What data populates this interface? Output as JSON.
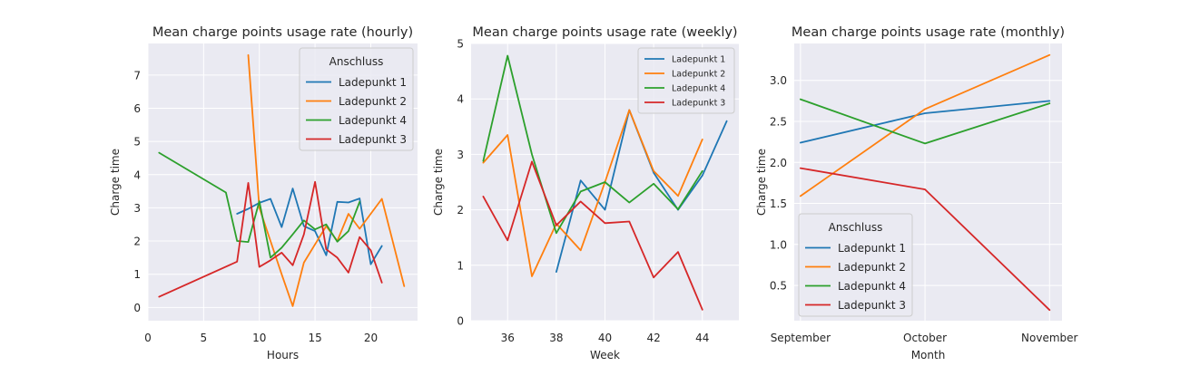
{
  "chart_data": [
    {
      "type": "line",
      "title": "Mean charge points usage rate (hourly)",
      "xlabel": "Hours",
      "ylabel": "Charge time",
      "xlim": [
        0,
        24.2
      ],
      "ylim": [
        -0.4,
        7.95
      ],
      "xticks": [
        0,
        5,
        10,
        15,
        20
      ],
      "yticks": [
        0,
        1,
        2,
        3,
        4,
        5,
        6,
        7
      ],
      "grid": true,
      "legend": {
        "title": "Anschluss",
        "placement": "top-right",
        "size": "large"
      },
      "series": [
        {
          "name": "Ladepunkt 1",
          "color": "#1f77b4",
          "x": [
            8,
            9,
            10,
            11,
            12,
            13,
            14,
            15,
            16,
            17,
            18,
            19,
            20,
            21
          ],
          "y": [
            2.82,
            2.97,
            3.15,
            3.27,
            2.42,
            3.58,
            2.45,
            2.3,
            1.57,
            3.18,
            3.16,
            3.28,
            1.3,
            1.85
          ]
        },
        {
          "name": "Ladepunkt 2",
          "color": "#ff7f0e",
          "x": [
            9,
            10,
            11,
            12,
            13,
            14,
            15,
            16,
            17,
            18,
            19,
            21,
            23
          ],
          "y": [
            7.6,
            3.0,
            2.0,
            1.0,
            0.04,
            1.35,
            1.9,
            2.45,
            2.0,
            2.82,
            2.37,
            3.27,
            0.64
          ]
        },
        {
          "name": "Ladepunkt 4",
          "color": "#2ca02c",
          "x": [
            1,
            7,
            8,
            9,
            10,
            11,
            12,
            13,
            14,
            15,
            16,
            17,
            18,
            19
          ],
          "y": [
            4.66,
            3.46,
            2.0,
            1.97,
            3.2,
            1.5,
            1.8,
            2.2,
            2.62,
            2.35,
            2.5,
            1.98,
            2.3,
            3.18
          ]
        },
        {
          "name": "Ladepunkt 3",
          "color": "#d62728",
          "x": [
            1,
            8,
            9,
            10,
            11,
            12,
            13,
            14,
            15,
            16,
            17,
            18,
            19,
            20,
            21
          ],
          "y": [
            0.32,
            1.38,
            3.75,
            1.22,
            1.42,
            1.65,
            1.27,
            2.2,
            3.78,
            1.75,
            1.5,
            1.05,
            2.12,
            1.72,
            0.75
          ]
        }
      ]
    },
    {
      "type": "line",
      "title": "Mean charge points usage rate (weekly)",
      "xlabel": "Week",
      "ylabel": "Charge time",
      "xlim": [
        34.5,
        45.5
      ],
      "ylim": [
        0,
        5
      ],
      "xticks": [
        36,
        38,
        40,
        42,
        44
      ],
      "yticks": [
        0,
        1,
        2,
        3,
        4,
        5
      ],
      "grid": true,
      "legend": {
        "title": "",
        "placement": "top-right",
        "size": "small"
      },
      "series": [
        {
          "name": "Ladepunkt 1",
          "color": "#1f77b4",
          "x": [
            38,
            39,
            40,
            41,
            42,
            43,
            44,
            45
          ],
          "y": [
            0.88,
            2.53,
            2.0,
            3.8,
            2.67,
            2.0,
            2.62,
            3.6
          ]
        },
        {
          "name": "Ladepunkt 2",
          "color": "#ff7f0e",
          "x": [
            35,
            36,
            37,
            38,
            39,
            40,
            41,
            42,
            43,
            44
          ],
          "y": [
            2.85,
            3.35,
            0.8,
            1.75,
            1.27,
            2.5,
            3.8,
            2.7,
            2.25,
            3.27
          ]
        },
        {
          "name": "Ladepunkt 4",
          "color": "#2ca02c",
          "x": [
            35,
            36,
            37,
            38,
            39,
            40,
            41,
            42,
            43,
            44
          ],
          "y": [
            2.88,
            4.78,
            3.0,
            1.58,
            2.33,
            2.5,
            2.13,
            2.47,
            2.01,
            2.7
          ]
        },
        {
          "name": "Ladepunkt 3",
          "color": "#d62728",
          "x": [
            35,
            36,
            37,
            38,
            39,
            40,
            41,
            42,
            43,
            44
          ],
          "y": [
            2.24,
            1.45,
            2.87,
            1.72,
            2.15,
            1.76,
            1.79,
            0.78,
            1.24,
            0.2
          ]
        }
      ]
    },
    {
      "type": "line",
      "title": "Mean charge points usage rate (monthly)",
      "xlabel": "Month",
      "ylabel": "Charge time",
      "xlim": [
        -0.05,
        2.1
      ],
      "ylim": [
        0.07,
        3.45
      ],
      "categories": [
        "September",
        "October",
        "November"
      ],
      "yticks": [
        0.5,
        1.0,
        1.5,
        2.0,
        2.5,
        3.0
      ],
      "grid": true,
      "legend": {
        "title": "Anschluss",
        "placement": "bottom-left",
        "size": "large"
      },
      "series": [
        {
          "name": "Ladepunkt 1",
          "color": "#1f77b4",
          "x": [
            0,
            1,
            2
          ],
          "y": [
            2.24,
            2.6,
            2.75
          ]
        },
        {
          "name": "Ladepunkt 2",
          "color": "#ff7f0e",
          "x": [
            0,
            1,
            2
          ],
          "y": [
            1.59,
            2.65,
            3.31
          ]
        },
        {
          "name": "Ladepunkt 4",
          "color": "#2ca02c",
          "x": [
            0,
            1,
            2
          ],
          "y": [
            2.77,
            2.23,
            2.72
          ]
        },
        {
          "name": "Ladepunkt 3",
          "color": "#d62728",
          "x": [
            0,
            1,
            2
          ],
          "y": [
            1.93,
            1.67,
            0.2
          ]
        }
      ]
    }
  ]
}
